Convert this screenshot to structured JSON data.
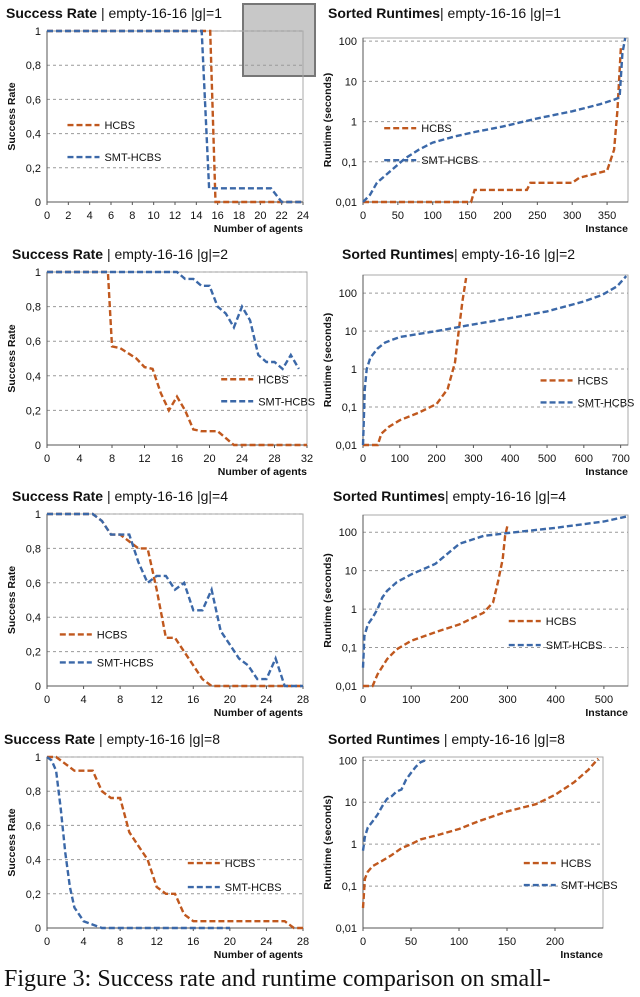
{
  "caption": "Figure 3: Success rate and runtime comparison on small-",
  "thumbnail": {
    "name": "map-thumbnail",
    "color": "#c8c8c8"
  },
  "colors": {
    "hcbs": "#c0581e",
    "smt": "#3b68a8"
  },
  "chart_data": [
    {
      "type": "line",
      "title_bold": "Success Rate",
      "title_rest": " | empty-16-16 |g|=1",
      "xlabel": "Number of agents",
      "ylabel": "Success Rate",
      "xlim": [
        0,
        24
      ],
      "ylim": [
        0,
        1
      ],
      "xticks": [
        0,
        2,
        4,
        6,
        8,
        10,
        12,
        14,
        16,
        18,
        20,
        22,
        24
      ],
      "xtick_labels": [
        "0",
        "2",
        "4",
        "6",
        "8",
        "10",
        "12",
        "14",
        "16",
        "18",
        "20",
        "22",
        "24"
      ],
      "yticks": [
        0,
        0.2,
        0.4,
        0.6,
        0.8,
        1
      ],
      "ytick_labels": [
        "0",
        "0,2",
        "0,4",
        "0,6",
        "0,8",
        "1"
      ],
      "legend": "left",
      "series": [
        {
          "name": "HCBS",
          "color": "#c0581e",
          "x": [
            0,
            15,
            15.3,
            15.8,
            16,
            24
          ],
          "y": [
            1,
            1,
            1,
            0,
            0,
            0
          ]
        },
        {
          "name": "SMT-HCBS",
          "color": "#3b68a8",
          "x": [
            0,
            14.5,
            15.2,
            15.5,
            16,
            20,
            21,
            22,
            23,
            24
          ],
          "y": [
            1,
            1,
            0.08,
            0.08,
            0.08,
            0.08,
            0.08,
            0,
            0,
            0
          ]
        }
      ]
    },
    {
      "type": "line",
      "title_bold": "Sorted Runtimes",
      "title_rest": "| empty-16-16 |g|=1",
      "xlabel": "Instance",
      "ylabel": "Runtime (seconds)",
      "yscale": "log",
      "xlim": [
        0,
        380
      ],
      "ylim": [
        0.01,
        120
      ],
      "xticks": [
        0,
        50,
        100,
        150,
        200,
        250,
        300,
        350
      ],
      "xtick_labels": [
        "0",
        "50",
        "100",
        "150",
        "200",
        "250",
        "300",
        "350"
      ],
      "yticks": [
        0.01,
        0.1,
        1,
        10,
        100
      ],
      "ytick_labels": [
        "0,01",
        "0,1",
        "1",
        "10",
        "100"
      ],
      "legend": "left",
      "series": [
        {
          "name": "HCBS",
          "color": "#c0581e",
          "x": [
            0,
            155,
            160,
            235,
            240,
            300,
            310,
            350,
            360,
            365,
            370
          ],
          "y": [
            0.01,
            0.01,
            0.02,
            0.02,
            0.03,
            0.03,
            0.04,
            0.06,
            0.2,
            2,
            80
          ]
        },
        {
          "name": "SMT-HCBS",
          "color": "#3b68a8",
          "x": [
            0,
            10,
            20,
            40,
            60,
            80,
            100,
            130,
            160,
            200,
            250,
            300,
            340,
            360,
            368,
            372,
            376
          ],
          "y": [
            0.01,
            0.015,
            0.03,
            0.06,
            0.12,
            0.2,
            0.3,
            0.42,
            0.55,
            0.75,
            1.2,
            1.8,
            2.7,
            3.5,
            4,
            50,
            120
          ]
        }
      ]
    },
    {
      "type": "line",
      "title_bold": "Success Rate",
      "title_rest": " | empty-16-16 |g|=2",
      "xlabel": "Number of agents",
      "ylabel": "Success Rate",
      "xlim": [
        0,
        32
      ],
      "ylim": [
        0,
        1
      ],
      "xticks": [
        0,
        4,
        8,
        12,
        16,
        20,
        24,
        28,
        32
      ],
      "xtick_labels": [
        "0",
        "4",
        "8",
        "12",
        "16",
        "20",
        "24",
        "28",
        "32"
      ],
      "yticks": [
        0,
        0.2,
        0.4,
        0.6,
        0.8,
        1
      ],
      "ytick_labels": [
        "0",
        "0,2",
        "0,4",
        "0,6",
        "0,8",
        "1"
      ],
      "legend": "bottom-right",
      "series": [
        {
          "name": "HCBS",
          "color": "#c0581e",
          "x": [
            0,
            7,
            7.5,
            8,
            9,
            10,
            11,
            12,
            13,
            14,
            15,
            16,
            17,
            18,
            19,
            20,
            21,
            22,
            23,
            24,
            32
          ],
          "y": [
            1,
            1,
            1,
            0.57,
            0.56,
            0.53,
            0.5,
            0.45,
            0.44,
            0.3,
            0.2,
            0.28,
            0.2,
            0.09,
            0.08,
            0.08,
            0.08,
            0.04,
            0,
            0,
            0
          ]
        },
        {
          "name": "SMT-HCBS",
          "color": "#3b68a8",
          "x": [
            0,
            16,
            17,
            18,
            19,
            20,
            21,
            22,
            23,
            24,
            25,
            26,
            27,
            28,
            29,
            30,
            31
          ],
          "y": [
            1,
            1,
            0.96,
            0.96,
            0.92,
            0.92,
            0.8,
            0.76,
            0.68,
            0.8,
            0.72,
            0.52,
            0.48,
            0.48,
            0.44,
            0.52,
            0.44
          ]
        }
      ]
    },
    {
      "type": "line",
      "title_bold": "Sorted Runtimes",
      "title_rest": "| empty-16-16 |g|=2",
      "xlabel": "Instance",
      "ylabel": "Runtime (seconds)",
      "yscale": "log",
      "xlim": [
        0,
        720
      ],
      "ylim": [
        0.01,
        300
      ],
      "xticks": [
        0,
        100,
        200,
        300,
        400,
        500,
        600,
        700
      ],
      "xtick_labels": [
        "0",
        "100",
        "200",
        "300",
        "400",
        "500",
        "600",
        "700"
      ],
      "yticks": [
        0.01,
        0.1,
        1,
        10,
        100
      ],
      "ytick_labels": [
        "0,01",
        "0,1",
        "1",
        "10",
        "100"
      ],
      "legend": "bottom-right",
      "series": [
        {
          "name": "HCBS",
          "color": "#c0581e",
          "x": [
            0,
            40,
            50,
            70,
            100,
            150,
            200,
            230,
            250,
            260,
            270,
            280
          ],
          "y": [
            0.01,
            0.01,
            0.02,
            0.03,
            0.045,
            0.07,
            0.12,
            0.3,
            1.5,
            10,
            60,
            250
          ]
        },
        {
          "name": "SMT-HCBS",
          "color": "#3b68a8",
          "x": [
            0,
            5,
            10,
            20,
            40,
            60,
            100,
            200,
            300,
            400,
            500,
            600,
            650,
            690,
            715
          ],
          "y": [
            0.01,
            0.3,
            1,
            2,
            3.5,
            5,
            7,
            10,
            15,
            22,
            33,
            60,
            90,
            150,
            280
          ]
        }
      ]
    },
    {
      "type": "line",
      "title_bold": "Success Rate",
      "title_rest": " | empty-16-16 |g|=4",
      "xlabel": "Number of agents",
      "ylabel": "Success Rate",
      "xlim": [
        0,
        28
      ],
      "ylim": [
        0,
        1
      ],
      "xticks": [
        0,
        4,
        8,
        12,
        16,
        20,
        24,
        28
      ],
      "xtick_labels": [
        "0",
        "4",
        "8",
        "12",
        "16",
        "20",
        "24",
        "28"
      ],
      "yticks": [
        0,
        0.2,
        0.4,
        0.6,
        0.8,
        1
      ],
      "ytick_labels": [
        "0",
        "0,2",
        "0,4",
        "0,6",
        "0,8",
        "1"
      ],
      "legend": "bottom-left",
      "series": [
        {
          "name": "HCBS",
          "color": "#c0581e",
          "x": [
            0,
            5,
            6,
            7,
            8,
            9,
            10,
            11,
            12,
            13,
            14,
            15,
            16,
            17,
            18,
            19,
            28
          ],
          "y": [
            1,
            1,
            0.96,
            0.88,
            0.88,
            0.84,
            0.8,
            0.8,
            0.56,
            0.28,
            0.28,
            0.2,
            0.12,
            0.04,
            0,
            0,
            0
          ]
        },
        {
          "name": "SMT-HCBS",
          "color": "#3b68a8",
          "x": [
            0,
            5,
            6,
            7,
            8,
            9,
            10,
            11,
            12,
            13,
            14,
            15,
            16,
            17,
            18,
            19,
            20,
            21,
            22,
            23,
            24,
            25,
            26,
            27,
            28
          ],
          "y": [
            1,
            1,
            0.96,
            0.88,
            0.88,
            0.88,
            0.72,
            0.6,
            0.64,
            0.64,
            0.56,
            0.6,
            0.44,
            0.44,
            0.56,
            0.32,
            0.24,
            0.16,
            0.12,
            0.04,
            0.04,
            0.16,
            0,
            0,
            0
          ]
        }
      ]
    },
    {
      "type": "line",
      "title_bold": "Sorted Runtimes",
      "title_rest": "| empty-16-16 |g|=4",
      "xlabel": "Instance",
      "ylabel": "Runtime (seconds)",
      "yscale": "log",
      "xlim": [
        0,
        550
      ],
      "ylim": [
        0.01,
        280
      ],
      "xticks": [
        0,
        100,
        200,
        300,
        400,
        500
      ],
      "xtick_labels": [
        "0",
        "100",
        "200",
        "300",
        "400",
        "500"
      ],
      "yticks": [
        0.01,
        0.1,
        1,
        10,
        100
      ],
      "ytick_labels": [
        "0,01",
        "0,1",
        "1",
        "10",
        "100"
      ],
      "legend": "right",
      "series": [
        {
          "name": "HCBS",
          "color": "#c0581e",
          "x": [
            0,
            20,
            30,
            50,
            70,
            100,
            150,
            200,
            250,
            270,
            280,
            290,
            295,
            300
          ],
          "y": [
            0.01,
            0.01,
            0.02,
            0.05,
            0.09,
            0.15,
            0.25,
            0.4,
            0.8,
            1.5,
            5,
            20,
            80,
            150
          ]
        },
        {
          "name": "SMT-HCBS",
          "color": "#3b68a8",
          "x": [
            0,
            3,
            10,
            20,
            30,
            40,
            50,
            70,
            100,
            150,
            200,
            250,
            300,
            400,
            500,
            550
          ],
          "y": [
            0.03,
            0.2,
            0.4,
            0.6,
            1,
            2,
            3,
            5,
            8,
            15,
            50,
            80,
            95,
            130,
            190,
            260
          ]
        }
      ]
    },
    {
      "type": "line",
      "title_bold": "Success Rate",
      "title_rest": " | empty-16-16 |g|=8",
      "xlabel": "Number of agents",
      "ylabel": "Success Rate",
      "xlim": [
        0,
        28
      ],
      "ylim": [
        0,
        1
      ],
      "xticks": [
        0,
        4,
        8,
        12,
        16,
        20,
        24,
        28
      ],
      "xtick_labels": [
        "0",
        "4",
        "8",
        "12",
        "16",
        "20",
        "24",
        "28"
      ],
      "yticks": [
        0,
        0.2,
        0.4,
        0.6,
        0.8,
        1
      ],
      "ytick_labels": [
        "0",
        "0,2",
        "0,4",
        "0,6",
        "0,8",
        "1"
      ],
      "legend": "right",
      "series": [
        {
          "name": "HCBS",
          "color": "#c0581e",
          "x": [
            0,
            1,
            2,
            3,
            4,
            5,
            6,
            7,
            8,
            9,
            10,
            11,
            12,
            13,
            14,
            15,
            16,
            17,
            18,
            19,
            20,
            21,
            22,
            23,
            24,
            25,
            26,
            27,
            28
          ],
          "y": [
            1,
            1,
            0.96,
            0.92,
            0.92,
            0.92,
            0.8,
            0.76,
            0.76,
            0.56,
            0.48,
            0.4,
            0.24,
            0.2,
            0.2,
            0.08,
            0.04,
            0.04,
            0.04,
            0.04,
            0.04,
            0.04,
            0.04,
            0.04,
            0.04,
            0.04,
            0.04,
            0,
            0
          ]
        },
        {
          "name": "SMT-HCBS",
          "color": "#3b68a8",
          "x": [
            0,
            0.5,
            1,
            1.5,
            2,
            2.5,
            3,
            3.5,
            4,
            5,
            6,
            10,
            20
          ],
          "y": [
            1,
            0.98,
            0.92,
            0.7,
            0.44,
            0.24,
            0.12,
            0.08,
            0.04,
            0.02,
            0,
            0,
            0
          ]
        }
      ]
    },
    {
      "type": "line",
      "title_bold": "Sorted Runtimes",
      "title_rest": " | empty-16-16 |g|=8",
      "xlabel": "Instance",
      "ylabel": "Runtime (seconds)",
      "yscale": "log",
      "xlim": [
        0,
        250
      ],
      "ylim": [
        0.01,
        120
      ],
      "xticks": [
        0,
        50,
        100,
        150,
        200
      ],
      "xtick_labels": [
        "0",
        "50",
        "100",
        "150",
        "200"
      ],
      "yticks": [
        0.01,
        0.1,
        1,
        10,
        100
      ],
      "ytick_labels": [
        "0,01",
        "0,1",
        "1",
        "10",
        "100"
      ],
      "legend": "bottom-right",
      "series": [
        {
          "name": "HCBS",
          "color": "#c0581e",
          "x": [
            0,
            2,
            5,
            10,
            20,
            30,
            40,
            50,
            60,
            80,
            100,
            120,
            150,
            180,
            200,
            220,
            235,
            245
          ],
          "y": [
            0.03,
            0.15,
            0.22,
            0.3,
            0.4,
            0.55,
            0.8,
            1,
            1.3,
            1.7,
            2.3,
            3.5,
            6,
            9,
            15,
            30,
            60,
            110
          ]
        },
        {
          "name": "SMT-HCBS",
          "color": "#3b68a8",
          "x": [
            0,
            2,
            5,
            10,
            15,
            20,
            25,
            30,
            35,
            40,
            45,
            50,
            55,
            60,
            65
          ],
          "y": [
            0.7,
            1.5,
            2.5,
            3.5,
            5,
            8,
            12,
            14,
            18,
            20,
            35,
            50,
            70,
            90,
            100
          ]
        }
      ]
    }
  ]
}
